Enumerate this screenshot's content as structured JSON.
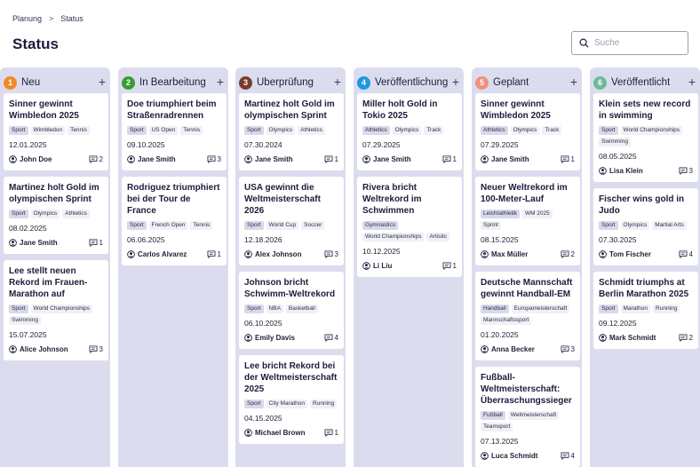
{
  "breadcrumb": {
    "items": [
      "Planung",
      "Status"
    ],
    "separator": ">"
  },
  "page": {
    "title": "Status"
  },
  "search": {
    "placeholder": "Suche",
    "icon": "search-icon"
  },
  "columns": [
    {
      "number": "1",
      "title": "Neu",
      "color": "#f08a24",
      "add_icon": "+",
      "cards": [
        {
          "title": "Sinner gewinnt Wimbledon 2025",
          "tags": [
            "Sport",
            "Wimbledon",
            "Tennis"
          ],
          "date": "12.01.2025",
          "author": "John Doe",
          "comments": "2"
        },
        {
          "title": "Martinez holt Gold im olympischen Sprint",
          "tags": [
            "Sport",
            "Olympics",
            "Athletics"
          ],
          "date": "08.02.2025",
          "author": "Jane Smith",
          "comments": "1"
        },
        {
          "title": "Lee stellt neuen Rekord im Frauen-Marathon auf",
          "tags": [
            "Sport",
            "World Championships",
            "Swimming"
          ],
          "date": "15.07.2025",
          "author": "Alice Johnson",
          "comments": "3"
        }
      ]
    },
    {
      "number": "2",
      "title": "In Bearbeitung",
      "color": "#3a9a34",
      "add_icon": "+",
      "cards": [
        {
          "title": "Doe triumphiert beim Straßenradrennen",
          "tags": [
            "Sport",
            "US Open",
            "Tennis"
          ],
          "date": "09.10.2025",
          "author": "Jane Smith",
          "comments": "3"
        },
        {
          "title": "Rodriguez triumphiert bei der Tour de France",
          "tags": [
            "Sport",
            "French Open",
            "Tennis"
          ],
          "date": "06.06.2025",
          "author": "Carlos Alvarez",
          "comments": "1"
        }
      ]
    },
    {
      "number": "3",
      "title": "Überprüfung",
      "color": "#7a3b2b",
      "add_icon": "+",
      "cards": [
        {
          "title": "Martinez holt Gold im olympischen Sprint",
          "tags": [
            "Sport",
            "Olympics",
            "Athletics"
          ],
          "date": "07.30.2024",
          "author": "Jane Smith",
          "comments": "1"
        },
        {
          "title": "USA gewinnt die Weltmeisterschaft 2026",
          "tags": [
            "Sport",
            "World Cup",
            "Soccer"
          ],
          "date": "12.18.2026",
          "author": "Alex Johnson",
          "comments": "3"
        },
        {
          "title": "Johnson bricht Schwimm-Weltrekord",
          "tags": [
            "Sport",
            "NBA",
            "Basketball"
          ],
          "date": "06.10.2025",
          "author": "Emily Davis",
          "comments": "4"
        },
        {
          "title": "Lee bricht Rekord bei der Weltmeisterschaft 2025",
          "tags": [
            "Sport",
            "City Marathon",
            "Running"
          ],
          "date": "04.15.2025",
          "author": "Michael Brown",
          "comments": "1"
        }
      ]
    },
    {
      "number": "4",
      "title": "Veröffentlichung",
      "color": "#2196e0",
      "add_icon": "+",
      "cards": [
        {
          "title": "Miller holt Gold in Tokio 2025",
          "tags": [
            "Athletics",
            "Olympics",
            "Track"
          ],
          "date": "07.29.2025",
          "author": "Jane Smith",
          "comments": "1"
        },
        {
          "title": "Rivera bricht Weltrekord im Schwimmen",
          "tags": [
            "Gymnastics",
            "World Championships",
            "Artistic"
          ],
          "date": "10.12.2025",
          "author": "Li Liu",
          "comments": "1"
        }
      ]
    },
    {
      "number": "5",
      "title": "Geplant",
      "color": "#f0907e",
      "add_icon": "+",
      "cards": [
        {
          "title": "Sinner gewinnt Wimbledon 2025",
          "tags": [
            "Athletics",
            "Olympics",
            "Track"
          ],
          "date": "07.29.2025",
          "author": "Jane Smith",
          "comments": "1"
        },
        {
          "title": "Neuer Weltrekord im 100-Meter-Lauf",
          "tags": [
            "Leichtathletik",
            "WM 2025",
            "Sprint"
          ],
          "date": "08.15.2025",
          "author": "Max Müller",
          "comments": "2"
        },
        {
          "title": "Deutsche Mannschaft gewinnt Handball-EM",
          "tags": [
            "Handball",
            "Europameisterschaft",
            "Mannschaftssport"
          ],
          "date": "01.20.2025",
          "author": "Anna Becker",
          "comments": "3"
        },
        {
          "title": "Fußball-Weltmeisterschaft: Überraschungssieger",
          "tags": [
            "Fußball",
            "Weltmeisterschaft",
            "Teamsport"
          ],
          "date": "07.13.2025",
          "author": "Luca Schmidt",
          "comments": "4"
        }
      ]
    },
    {
      "number": "6",
      "title": "Veröffentlicht",
      "color": "#6fb89a",
      "add_icon": "+",
      "cards": [
        {
          "title": "Klein sets new record in swimming",
          "tags": [
            "Sport",
            "World Championships",
            "Swimming"
          ],
          "date": "08.05.2025",
          "author": "Lisa Klein",
          "comments": "3"
        },
        {
          "title": "Fischer wins gold in Judo",
          "tags": [
            "Sport",
            "Olympics",
            "Martial Arts"
          ],
          "date": "07.30.2025",
          "author": "Tom Fischer",
          "comments": "4"
        },
        {
          "title": "Schmidt triumphs at Berlin Marathon 2025",
          "tags": [
            "Sport",
            "Marathon",
            "Running"
          ],
          "date": "09.12.2025",
          "author": "Mark Schmidt",
          "comments": "2"
        }
      ]
    }
  ]
}
